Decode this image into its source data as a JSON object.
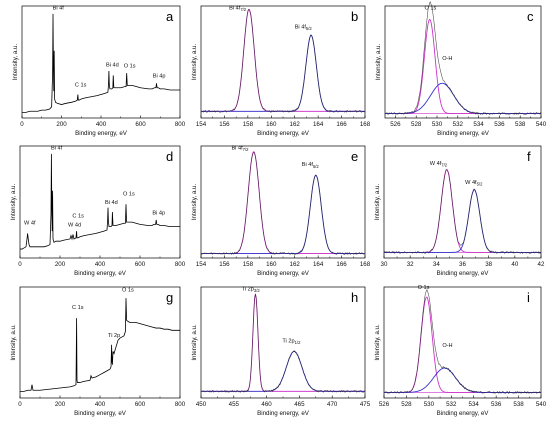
{
  "chart_data": [
    {
      "id": "a",
      "type": "line",
      "letter": "a",
      "xlabel": "Binding energy, eV",
      "ylabel": "Intensity, a.u.",
      "xlim": [
        0,
        800
      ],
      "ylim": [
        0,
        1
      ],
      "ticks": [
        0,
        200,
        400,
        600,
        800
      ],
      "show_y_ticks": false,
      "series": [
        {
          "color": "#000000",
          "width": 0.8,
          "x": [
            0,
            20,
            40,
            60,
            80,
            100,
            120,
            140,
            150,
            155,
            157,
            159,
            161,
            163,
            165,
            170,
            180,
            200,
            220,
            250,
            270,
            280,
            283,
            285,
            287,
            290,
            300,
            320,
            350,
            380,
            400,
            420,
            435,
            438,
            440,
            442,
            445,
            450,
            455,
            460,
            462,
            465,
            470,
            480,
            500,
            520,
            527,
            530,
            533,
            540,
            560,
            580,
            600,
            640,
            660,
            670,
            678,
            681,
            684,
            690,
            700,
            720,
            750,
            780,
            800
          ],
          "y": [
            0.05,
            0.05,
            0.06,
            0.06,
            0.06,
            0.07,
            0.07,
            0.08,
            0.1,
            0.4,
            0.93,
            0.45,
            0.24,
            0.6,
            0.17,
            0.14,
            0.13,
            0.12,
            0.13,
            0.14,
            0.15,
            0.16,
            0.21,
            0.16,
            0.16,
            0.16,
            0.17,
            0.18,
            0.19,
            0.2,
            0.21,
            0.22,
            0.23,
            0.3,
            0.42,
            0.3,
            0.26,
            0.26,
            0.26,
            0.27,
            0.38,
            0.27,
            0.27,
            0.27,
            0.27,
            0.28,
            0.28,
            0.4,
            0.29,
            0.29,
            0.29,
            0.28,
            0.27,
            0.26,
            0.26,
            0.27,
            0.27,
            0.31,
            0.27,
            0.27,
            0.26,
            0.26,
            0.25,
            0.25,
            0.25
          ]
        }
      ],
      "annotations": [
        {
          "text": "Bi 4f",
          "x": 155,
          "y": 0.97
        },
        {
          "text": "C 1s",
          "x": 268,
          "y": 0.28
        },
        {
          "text": "Bi 4d",
          "x": 425,
          "y": 0.46
        },
        {
          "text": "O 1s",
          "x": 515,
          "y": 0.45
        },
        {
          "text": "Bi 4p",
          "x": 662,
          "y": 0.36
        }
      ]
    },
    {
      "id": "b",
      "type": "line",
      "letter": "b",
      "xlabel": "Binding energy, eV",
      "ylabel": "Intensity, a.u.",
      "xlim": [
        154,
        168
      ],
      "ylim": [
        0,
        1
      ],
      "ticks": [
        154,
        156,
        158,
        160,
        162,
        164,
        166,
        168
      ],
      "show_y_ticks": false,
      "baseline": 0.06,
      "peaks": [
        {
          "center": 158.1,
          "fwhm": 1.05,
          "height": 0.91,
          "color": "#cc33cc",
          "subscript": "7/2"
        },
        {
          "center": 163.4,
          "fwhm": 1.05,
          "height": 0.68,
          "color": "#3333cc",
          "subscript": "5/2"
        }
      ],
      "annotations": [
        {
          "text": "Bi 4f",
          "sub": "7/2",
          "x": 156.4,
          "y": 0.97
        },
        {
          "text": "Bi 4f",
          "sub": "5/2",
          "x": 162.0,
          "y": 0.8
        }
      ]
    },
    {
      "id": "c",
      "type": "line",
      "letter": "c",
      "xlabel": "Binding energy, eV",
      "ylabel": "Intensity, a.u.",
      "xlim": [
        525,
        540
      ],
      "ylim": [
        0,
        1
      ],
      "ticks": [
        526,
        528,
        530,
        532,
        534,
        536,
        538,
        540
      ],
      "show_y_ticks": false,
      "baseline": 0.04,
      "peaks": [
        {
          "center": 529.3,
          "fwhm": 1.2,
          "height": 0.84,
          "color": "#cc33cc"
        },
        {
          "center": 530.5,
          "fwhm": 2.6,
          "height": 0.27,
          "color": "#3333cc"
        }
      ],
      "annotations": [
        {
          "text": "O 1s",
          "x": 528.8,
          "y": 0.97
        },
        {
          "text": "O-H",
          "x": 530.5,
          "y": 0.52
        }
      ]
    },
    {
      "id": "d",
      "type": "line",
      "letter": "d",
      "xlabel": "Binding energy, eV",
      "ylabel": "Intensity, a.u.",
      "xlim": [
        0,
        800
      ],
      "ylim": [
        0,
        1
      ],
      "ticks": [
        0,
        200,
        400,
        600,
        800
      ],
      "show_y_ticks": false,
      "series": [
        {
          "color": "#000000",
          "width": 0.8,
          "x": [
            0,
            10,
            20,
            30,
            35,
            38,
            42,
            45,
            50,
            60,
            80,
            100,
            120,
            140,
            150,
            155,
            157,
            159,
            161,
            163,
            165,
            170,
            180,
            200,
            220,
            250,
            255,
            260,
            265,
            270,
            280,
            283,
            285,
            287,
            290,
            300,
            320,
            350,
            380,
            400,
            420,
            435,
            438,
            440,
            442,
            445,
            450,
            455,
            460,
            462,
            465,
            470,
            480,
            500,
            520,
            527,
            530,
            533,
            540,
            560,
            580,
            600,
            640,
            660,
            670,
            678,
            681,
            684,
            690,
            700,
            720,
            750,
            780,
            800
          ],
          "y": [
            0.08,
            0.08,
            0.09,
            0.1,
            0.17,
            0.22,
            0.16,
            0.12,
            0.1,
            0.1,
            0.1,
            0.1,
            0.1,
            0.11,
            0.12,
            0.4,
            0.93,
            0.45,
            0.24,
            0.6,
            0.17,
            0.14,
            0.15,
            0.15,
            0.16,
            0.17,
            0.2,
            0.17,
            0.21,
            0.17,
            0.18,
            0.24,
            0.18,
            0.18,
            0.18,
            0.19,
            0.2,
            0.21,
            0.22,
            0.23,
            0.24,
            0.25,
            0.33,
            0.45,
            0.33,
            0.28,
            0.28,
            0.28,
            0.29,
            0.41,
            0.29,
            0.29,
            0.29,
            0.3,
            0.31,
            0.31,
            0.48,
            0.32,
            0.32,
            0.32,
            0.31,
            0.3,
            0.29,
            0.29,
            0.3,
            0.3,
            0.34,
            0.3,
            0.3,
            0.29,
            0.29,
            0.28,
            0.28,
            0.28
          ]
        }
      ],
      "annotations": [
        {
          "text": "Bi 4f",
          "x": 155,
          "y": 0.97
        },
        {
          "text": "C 1s",
          "x": 262,
          "y": 0.36
        },
        {
          "text": "W 4d",
          "x": 240,
          "y": 0.28
        },
        {
          "text": "W 4f",
          "x": 20,
          "y": 0.3
        },
        {
          "text": "Bi 4d",
          "x": 425,
          "y": 0.48
        },
        {
          "text": "O 1s",
          "x": 515,
          "y": 0.56
        },
        {
          "text": "Bi 4p",
          "x": 662,
          "y": 0.39
        }
      ]
    },
    {
      "id": "e",
      "type": "line",
      "letter": "e",
      "xlabel": "Binding energy, eV",
      "ylabel": "Intensity, a.u.",
      "xlim": [
        154,
        168
      ],
      "ylim": [
        0,
        1
      ],
      "ticks": [
        154,
        156,
        158,
        160,
        162,
        164,
        166,
        168
      ],
      "show_y_ticks": false,
      "baseline": 0.04,
      "peaks": [
        {
          "center": 158.5,
          "fwhm": 1.1,
          "height": 0.91,
          "color": "#cc33cc"
        },
        {
          "center": 163.8,
          "fwhm": 1.1,
          "height": 0.7,
          "color": "#3333cc"
        }
      ],
      "annotations": [
        {
          "text": "Bi 4f",
          "sub": "7/2",
          "x": 156.6,
          "y": 0.97
        },
        {
          "text": "Bi 4f",
          "sub": "5/2",
          "x": 162.6,
          "y": 0.82
        }
      ]
    },
    {
      "id": "f",
      "type": "line",
      "letter": "f",
      "xlabel": "Binding energy, eV",
      "ylabel": "Intensity, a.u.",
      "xlim": [
        30,
        42
      ],
      "ylim": [
        0,
        1
      ],
      "ticks": [
        30,
        32,
        34,
        36,
        38,
        40,
        42
      ],
      "show_y_ticks": false,
      "baseline": 0.05,
      "peaks": [
        {
          "center": 34.8,
          "fwhm": 1.0,
          "height": 0.74,
          "color": "#cc33cc"
        },
        {
          "center": 36.9,
          "fwhm": 1.0,
          "height": 0.56,
          "color": "#3333cc"
        }
      ],
      "annotations": [
        {
          "text": "W 4f",
          "sub": "7/2",
          "x": 33.5,
          "y": 0.83
        },
        {
          "text": "W 4f",
          "sub": "5/2",
          "x": 36.2,
          "y": 0.66
        }
      ]
    },
    {
      "id": "g",
      "type": "line",
      "letter": "g",
      "xlabel": "Binding energy, eV",
      "ylabel": "Intensity, a.u.",
      "xlim": [
        0,
        800
      ],
      "ylim": [
        0,
        1
      ],
      "ticks": [
        0,
        200,
        400,
        600,
        800
      ],
      "show_y_ticks": false,
      "series": [
        {
          "color": "#000000",
          "width": 0.8,
          "x": [
            0,
            20,
            40,
            55,
            60,
            65,
            80,
            100,
            150,
            200,
            250,
            270,
            280,
            283,
            285,
            287,
            290,
            300,
            320,
            350,
            355,
            360,
            380,
            400,
            420,
            440,
            450,
            455,
            458,
            460,
            462,
            465,
            470,
            480,
            490,
            500,
            510,
            520,
            527,
            530,
            533,
            540,
            550,
            560,
            580,
            600,
            620,
            640,
            660,
            680,
            700,
            720,
            740,
            760,
            780,
            800
          ],
          "y": [
            0.06,
            0.06,
            0.07,
            0.07,
            0.12,
            0.07,
            0.07,
            0.07,
            0.08,
            0.09,
            0.1,
            0.11,
            0.12,
            0.72,
            0.16,
            0.14,
            0.14,
            0.14,
            0.15,
            0.16,
            0.2,
            0.18,
            0.19,
            0.21,
            0.23,
            0.25,
            0.26,
            0.28,
            0.48,
            0.32,
            0.3,
            0.42,
            0.4,
            0.46,
            0.52,
            0.54,
            0.55,
            0.56,
            0.6,
            0.9,
            0.7,
            0.69,
            0.68,
            0.68,
            0.68,
            0.67,
            0.66,
            0.65,
            0.64,
            0.63,
            0.63,
            0.62,
            0.62,
            0.61,
            0.61,
            0.61
          ]
        }
      ],
      "annotations": [
        {
          "text": "C 1s",
          "x": 260,
          "y": 0.8
        },
        {
          "text": "O 1s",
          "x": 510,
          "y": 0.96
        },
        {
          "text": "Ti 2p",
          "x": 440,
          "y": 0.55
        }
      ]
    },
    {
      "id": "h",
      "type": "line",
      "letter": "h",
      "xlabel": "Binding energy, eV",
      "ylabel": "Intensity, a.u.",
      "xlim": [
        450,
        475
      ],
      "ylim": [
        0,
        1
      ],
      "ticks": [
        450,
        455,
        460,
        465,
        470,
        475
      ],
      "show_y_ticks": false,
      "baseline": 0.06,
      "peaks": [
        {
          "center": 458.3,
          "fwhm": 0.9,
          "height": 0.88,
          "color": "#cc33cc"
        },
        {
          "center": 464.2,
          "fwhm": 2.8,
          "height": 0.36,
          "color": "#3333cc"
        }
      ],
      "annotations": [
        {
          "text": "Ti 2p",
          "sub": "3/2",
          "x": 456.2,
          "y": 0.97
        },
        {
          "text": "Ti 2p",
          "sub": "1/2",
          "x": 462.4,
          "y": 0.5
        }
      ]
    },
    {
      "id": "i",
      "type": "line",
      "letter": "i",
      "xlabel": "Binding energy, eV",
      "ylabel": "Intensity, a.u.",
      "xlim": [
        526,
        540
      ],
      "ylim": [
        0,
        1
      ],
      "ticks": [
        526,
        528,
        530,
        532,
        534,
        536,
        538,
        540
      ],
      "show_y_ticks": false,
      "baseline": 0.05,
      "peaks": [
        {
          "center": 529.8,
          "fwhm": 1.15,
          "height": 0.86,
          "color": "#cc33cc"
        },
        {
          "center": 531.4,
          "fwhm": 2.3,
          "height": 0.22,
          "color": "#3333cc"
        }
      ],
      "annotations": [
        {
          "text": "O 1s",
          "x": 529.0,
          "y": 0.98
        },
        {
          "text": "O-H",
          "x": 531.2,
          "y": 0.46
        }
      ]
    }
  ]
}
